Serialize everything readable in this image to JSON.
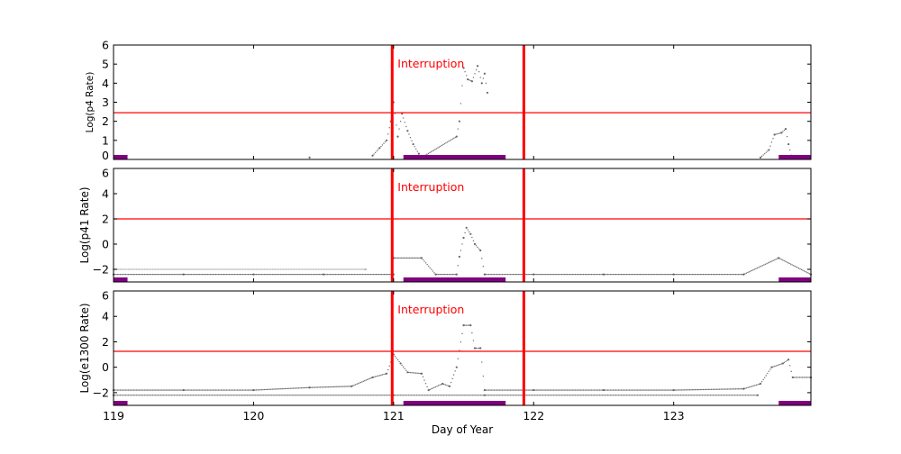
{
  "chart_data": [
    {
      "type": "scatter",
      "ylabel": "Log(p4 Rate)",
      "xlim": [
        119,
        123.98
      ],
      "ylim": [
        0,
        6
      ],
      "yticks": [
        0,
        1,
        2,
        3,
        4,
        5,
        6
      ],
      "threshold": 2.45,
      "annotation": "Interruption",
      "points": [
        [
          120.4,
          0.1
        ],
        [
          120.85,
          0.2
        ],
        [
          120.9,
          0.6
        ],
        [
          120.95,
          1.0
        ],
        [
          120.98,
          2.0
        ],
        [
          121.0,
          3.0
        ],
        [
          121.03,
          1.2
        ],
        [
          121.06,
          2.4
        ],
        [
          121.1,
          1.5
        ],
        [
          121.14,
          0.8
        ],
        [
          121.18,
          0.3
        ],
        [
          121.2,
          0.1
        ],
        [
          121.45,
          1.2
        ],
        [
          121.47,
          2.0
        ],
        [
          121.5,
          4.8
        ],
        [
          121.53,
          4.2
        ],
        [
          121.56,
          4.1
        ],
        [
          121.6,
          4.9
        ],
        [
          121.63,
          4.0
        ],
        [
          121.65,
          4.5
        ],
        [
          121.67,
          3.5
        ],
        [
          123.62,
          0.1
        ],
        [
          123.68,
          0.5
        ],
        [
          123.72,
          1.3
        ],
        [
          123.77,
          1.4
        ],
        [
          123.8,
          1.6
        ],
        [
          123.82,
          0.8
        ],
        [
          123.84,
          0.2
        ]
      ]
    },
    {
      "type": "scatter",
      "ylabel": "Log(p41 Rate)",
      "xlim": [
        119,
        123.98
      ],
      "ylim": [
        -3,
        6
      ],
      "yticks": [
        -2,
        0,
        2,
        4,
        6
      ],
      "threshold": 2.0,
      "annotation": "Interruption",
      "points": [
        [
          119.0,
          -2.4
        ],
        [
          119.5,
          -2.4
        ],
        [
          120.0,
          -2.4
        ],
        [
          120.5,
          -2.4
        ],
        [
          121.0,
          -2.4
        ],
        [
          121.0,
          -1.1
        ],
        [
          121.2,
          -1.1
        ],
        [
          121.3,
          -2.4
        ],
        [
          121.45,
          -2.4
        ],
        [
          121.47,
          -1.0
        ],
        [
          121.5,
          0.5
        ],
        [
          121.52,
          1.3
        ],
        [
          121.55,
          0.8
        ],
        [
          121.58,
          0.0
        ],
        [
          121.62,
          -0.5
        ],
        [
          121.65,
          -2.4
        ],
        [
          122.0,
          -2.4
        ],
        [
          122.5,
          -2.4
        ],
        [
          123.0,
          -2.4
        ],
        [
          123.5,
          -2.4
        ],
        [
          123.75,
          -1.1
        ],
        [
          123.98,
          -2.4
        ]
      ],
      "upper_band": [
        [
          119.0,
          -2.0
        ],
        [
          120.8,
          -2.0
        ]
      ]
    },
    {
      "type": "scatter",
      "ylabel": "Log(e1300 Rate)",
      "xlabel": "Day of Year",
      "xticks": [
        119,
        120,
        121,
        122,
        123
      ],
      "xlim": [
        119,
        123.98
      ],
      "ylim": [
        -3,
        6
      ],
      "yticks": [
        -2,
        0,
        2,
        4,
        6
      ],
      "threshold": 1.25,
      "annotation": "Interruption",
      "points": [
        [
          119.0,
          -1.8
        ],
        [
          119.5,
          -1.8
        ],
        [
          120.0,
          -1.8
        ],
        [
          120.4,
          -1.6
        ],
        [
          120.7,
          -1.5
        ],
        [
          120.85,
          -0.8
        ],
        [
          120.95,
          -0.5
        ],
        [
          121.0,
          1.0
        ],
        [
          121.05,
          0.3
        ],
        [
          121.1,
          -0.4
        ],
        [
          121.2,
          -0.5
        ],
        [
          121.25,
          -1.8
        ],
        [
          121.35,
          -1.3
        ],
        [
          121.4,
          -1.5
        ],
        [
          121.45,
          0.0
        ],
        [
          121.5,
          3.3
        ],
        [
          121.55,
          3.3
        ],
        [
          121.58,
          1.5
        ],
        [
          121.62,
          1.5
        ],
        [
          121.65,
          -1.8
        ],
        [
          122.0,
          -1.8
        ],
        [
          122.5,
          -1.8
        ],
        [
          123.0,
          -1.8
        ],
        [
          123.5,
          -1.7
        ],
        [
          123.62,
          -1.3
        ],
        [
          123.7,
          0.0
        ],
        [
          123.78,
          0.3
        ],
        [
          123.82,
          0.6
        ],
        [
          123.85,
          -0.8
        ],
        [
          123.98,
          -0.8
        ]
      ],
      "lower_band": [
        [
          119.0,
          -2.2
        ],
        [
          121.0,
          -2.2
        ],
        [
          121.65,
          -2.2
        ],
        [
          123.6,
          -2.2
        ]
      ]
    }
  ],
  "interruptions": [
    120.99,
    121.93
  ],
  "coverage_bars": [
    [
      119.0,
      119.1
    ],
    [
      121.07,
      121.8
    ],
    [
      123.75,
      123.98
    ]
  ],
  "colors": {
    "threshold": "#ff0000",
    "interruption": "#ff0000",
    "coverage": "#800080",
    "points": "#333333"
  }
}
